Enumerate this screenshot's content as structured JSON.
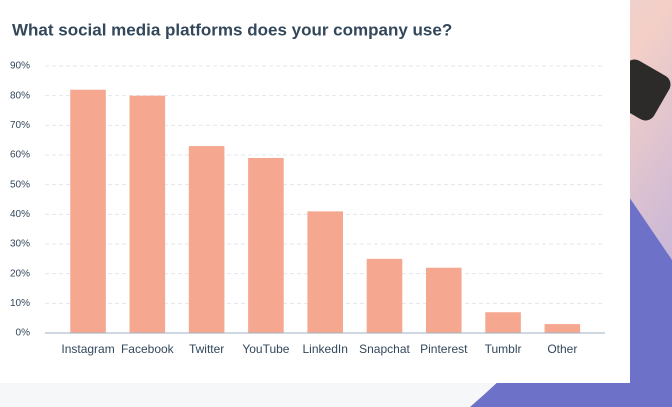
{
  "chart_data": {
    "type": "bar",
    "title": "What social media platforms does your company use?",
    "categories": [
      "Instagram",
      "Facebook",
      "Twitter",
      "YouTube",
      "LinkedIn",
      "Snapchat",
      "Pinterest",
      "Tumblr",
      "Other"
    ],
    "values": [
      82,
      80,
      63,
      59,
      41,
      25,
      22,
      7,
      3
    ],
    "color": "#f5a78f",
    "ylim": [
      0,
      90
    ],
    "yticks": [
      {
        "value": 0,
        "label": "0%"
      },
      {
        "value": 10,
        "label": "10%"
      },
      {
        "value": 20,
        "label": "20%"
      },
      {
        "value": 30,
        "label": "30%"
      },
      {
        "value": 40,
        "label": "40%"
      },
      {
        "value": 50,
        "label": "50%"
      },
      {
        "value": 60,
        "label": "60%"
      },
      {
        "value": 70,
        "label": "70%"
      },
      {
        "value": 80,
        "label": "80%"
      },
      {
        "value": 90,
        "label": "90%"
      }
    ],
    "grid": true
  }
}
